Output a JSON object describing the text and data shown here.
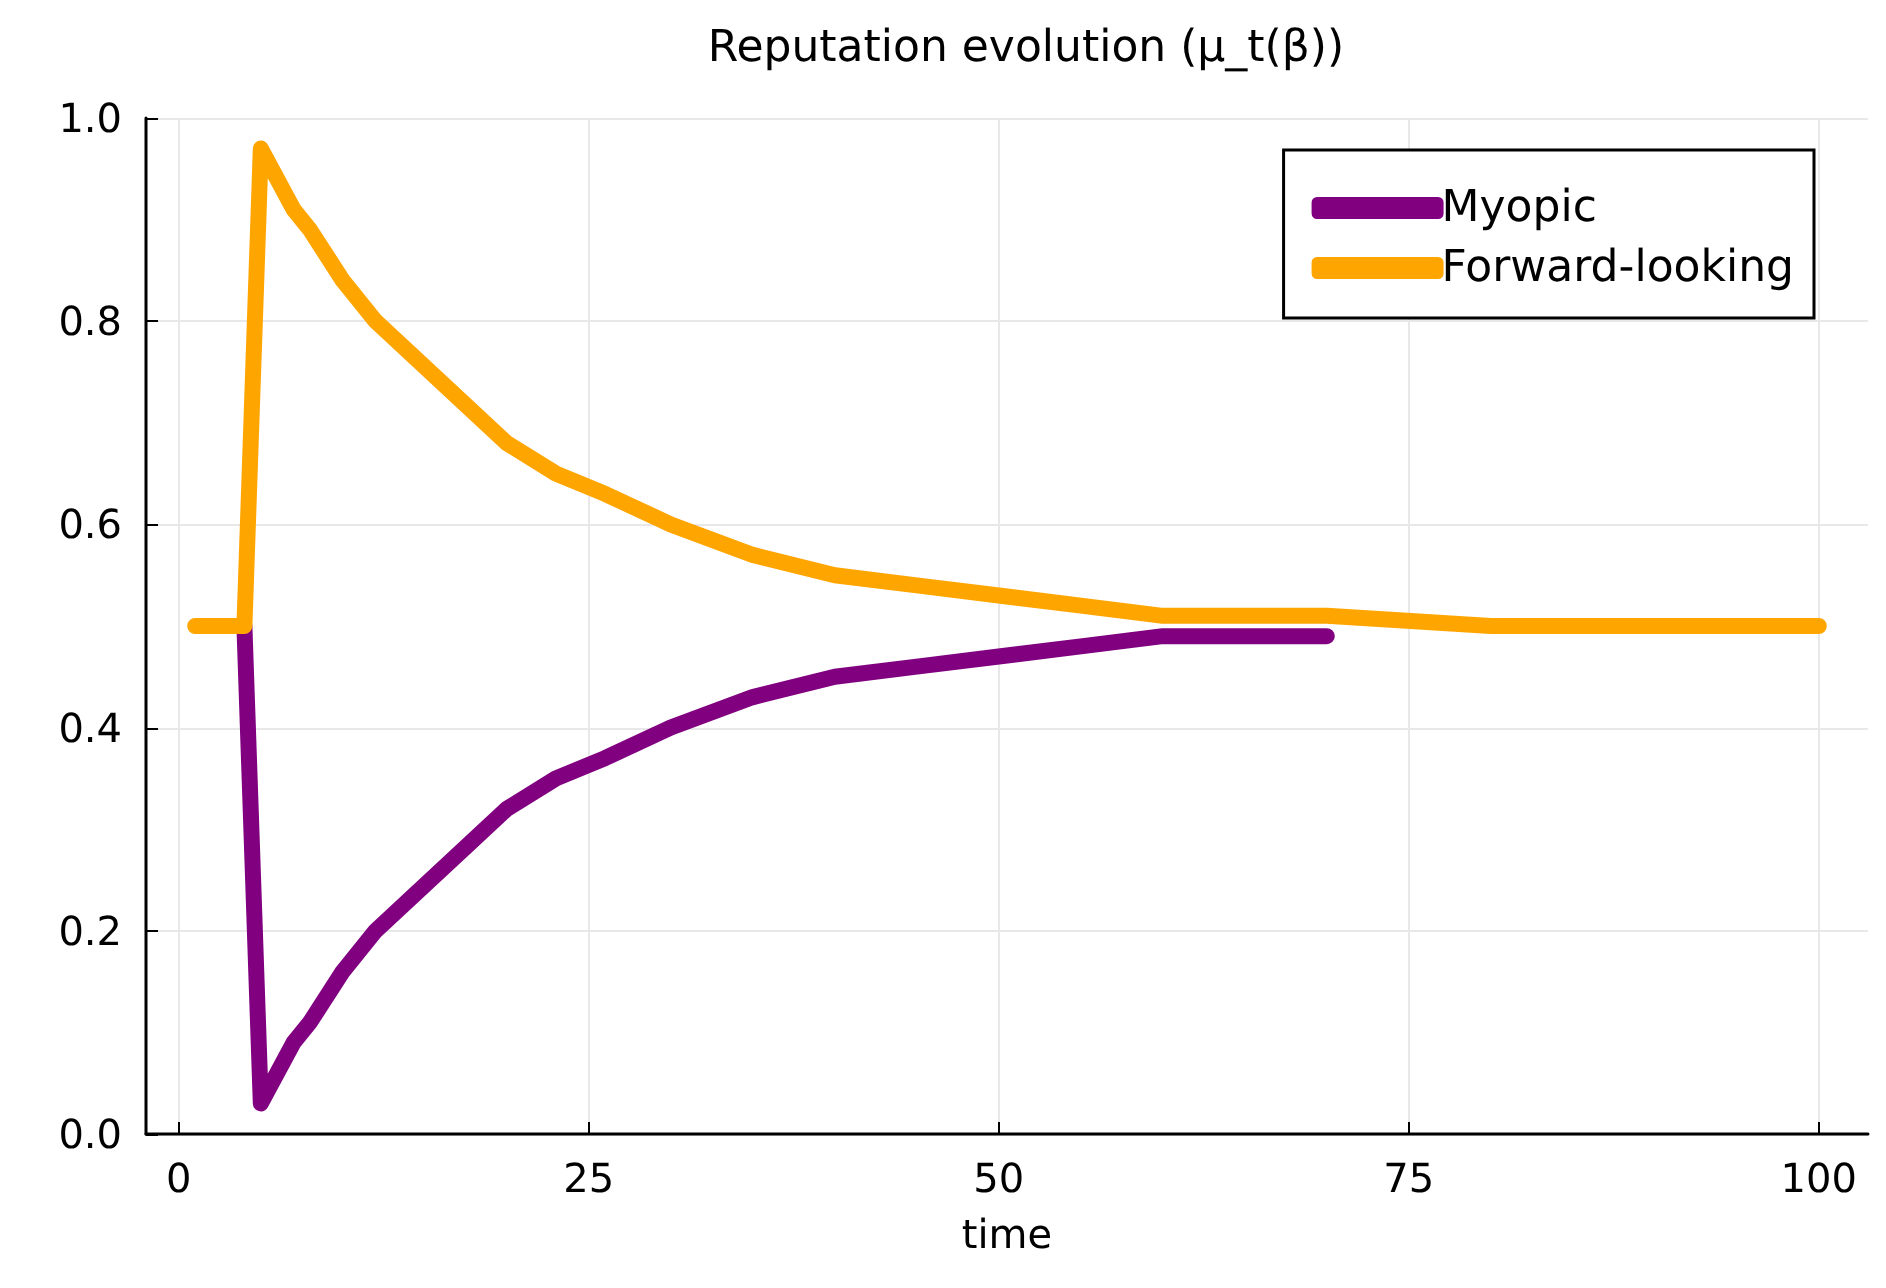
{
  "chart_data": {
    "type": "line",
    "title": "Reputation evolution (μ_t(β))",
    "xlabel": "time",
    "x": [
      1,
      2,
      3,
      4,
      5,
      6,
      7,
      8,
      10,
      12,
      14,
      16,
      18,
      20,
      23,
      26,
      30,
      35,
      40,
      45,
      50,
      55,
      60,
      70,
      80,
      90,
      100
    ],
    "series": [
      {
        "name": "Myopic",
        "color": "#800080",
        "values": [
          null,
          null,
          0.5,
          0.5,
          0.03,
          0.06,
          0.09,
          0.11,
          0.16,
          0.2,
          0.23,
          0.26,
          0.29,
          0.32,
          0.35,
          0.37,
          0.4,
          0.43,
          0.45,
          0.46,
          0.47,
          0.48,
          0.49,
          0.49,
          null,
          null,
          null
        ]
      },
      {
        "name": "Forward-looking",
        "color": "#ffa500",
        "values": [
          0.5,
          0.5,
          0.5,
          0.5,
          0.97,
          0.94,
          0.91,
          0.89,
          0.84,
          0.8,
          0.77,
          0.74,
          0.71,
          0.68,
          0.65,
          0.63,
          0.6,
          0.57,
          0.55,
          0.54,
          0.53,
          0.52,
          0.51,
          0.51,
          0.5,
          0.5,
          0.5
        ]
      }
    ],
    "xlim": [
      -2,
      103
    ],
    "ylim": [
      0,
      1
    ],
    "xticks": [
      0,
      25,
      50,
      75,
      100
    ],
    "yticks": [
      {
        "value": 0,
        "label": "0.0"
      },
      0.2,
      0.4,
      0.6,
      0.8,
      {
        "value": 1,
        "label": "1.0"
      }
    ],
    "grid": true,
    "legend": "top right"
  }
}
